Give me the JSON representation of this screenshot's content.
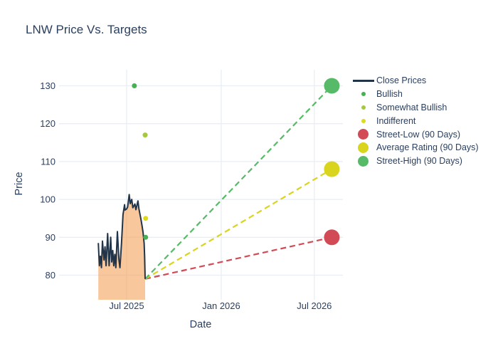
{
  "chart_data": {
    "type": "line",
    "title": "LNW Price Vs. Targets",
    "xlabel": "Date",
    "ylabel": "Price",
    "grid": true,
    "legend_position": "right-outside",
    "x_ticks": [
      {
        "label": "Jul 2025",
        "date": "2025-07-01"
      },
      {
        "label": "Jan 2026",
        "date": "2026-01-01"
      },
      {
        "label": "Jul 2026",
        "date": "2026-07-01"
      }
    ],
    "y_ticks": [
      80,
      90,
      100,
      110,
      120,
      130
    ],
    "y_range": [
      73.5,
      134.2
    ],
    "x_range": [
      "2025-02-22",
      "2026-08-26"
    ],
    "colors": {
      "text": "#2a3f5f",
      "grid": "#e9eef6",
      "background": "#ffffff",
      "close_line": "#223447",
      "close_fill": "rgba(244,164,96,0.62)",
      "bullish": "#44b152",
      "somewhat_bullish": "#a4c93c",
      "indifferent": "#ddd91c",
      "street_low": "#d14a55",
      "average_rating": "#d9d41d",
      "street_high": "#57ba68"
    },
    "series": [
      {
        "name": "Close Prices",
        "type": "area-line",
        "dates": [
          "2025-05-07",
          "2025-05-09",
          "2025-05-11",
          "2025-05-13",
          "2025-05-15",
          "2025-05-18",
          "2025-05-20",
          "2025-05-22",
          "2025-05-25",
          "2025-05-28",
          "2025-05-31",
          "2025-06-02",
          "2025-06-04",
          "2025-06-06",
          "2025-06-08",
          "2025-06-10",
          "2025-06-13",
          "2025-06-16",
          "2025-06-18",
          "2025-06-21",
          "2025-06-24",
          "2025-06-27",
          "2025-06-28",
          "2025-07-01",
          "2025-07-03",
          "2025-07-06",
          "2025-07-08",
          "2025-07-11",
          "2025-07-13",
          "2025-07-17",
          "2025-07-19",
          "2025-07-23",
          "2025-07-25",
          "2025-07-29",
          "2025-07-31",
          "2025-08-02",
          "2025-08-04",
          "2025-08-05",
          "2025-08-06"
        ],
        "values": [
          88.5,
          82.5,
          85,
          82,
          89,
          84,
          87.5,
          82.5,
          91,
          82.5,
          90,
          83.5,
          86.5,
          82.5,
          85.5,
          82,
          91.5,
          84,
          82,
          88.5,
          96,
          98.6,
          97.2,
          97.5,
          98,
          101.3,
          98.9,
          100,
          97.8,
          98.8,
          97.3,
          99.6,
          97.5,
          94.7,
          93,
          91.3,
          88.4,
          85,
          79
        ]
      }
    ],
    "rating_points": [
      {
        "label": "Bullish",
        "date": "2025-07-16",
        "value": 130,
        "color_key": "bullish"
      },
      {
        "label": "Somewhat Bullish",
        "date": "2025-08-06",
        "value": 117,
        "color_key": "somewhat_bullish"
      },
      {
        "label": "Indifferent",
        "date": "2025-08-07",
        "value": 95,
        "color_key": "indifferent"
      },
      {
        "label": "Bullish",
        "date": "2025-08-07",
        "value": 90,
        "color_key": "bullish"
      }
    ],
    "projection_start": {
      "date": "2025-08-06",
      "value": 79
    },
    "price_targets": [
      {
        "label": "Street-Low (90 Days)",
        "date": "2026-08-04",
        "value": 90,
        "color_key": "street_low"
      },
      {
        "label": "Average Rating (90 Days)",
        "date": "2026-08-04",
        "value": 108,
        "color_key": "average_rating"
      },
      {
        "label": "Street-High (90 Days)",
        "date": "2026-08-04",
        "value": 130,
        "color_key": "street_high"
      }
    ],
    "legend": [
      {
        "label": "Close Prices",
        "swatch": "line",
        "color_key": "close_line"
      },
      {
        "label": "Bullish",
        "swatch": "dot-small",
        "color_key": "bullish"
      },
      {
        "label": "Somewhat Bullish",
        "swatch": "dot-small",
        "color_key": "somewhat_bullish"
      },
      {
        "label": "Indifferent",
        "swatch": "dot-small",
        "color_key": "indifferent"
      },
      {
        "label": "Street-Low (90 Days)",
        "swatch": "dot-large",
        "color_key": "street_low"
      },
      {
        "label": "Average Rating (90 Days)",
        "swatch": "dot-large",
        "color_key": "average_rating"
      },
      {
        "label": "Street-High (90 Days)",
        "swatch": "dot-large",
        "color_key": "street_high"
      }
    ]
  }
}
